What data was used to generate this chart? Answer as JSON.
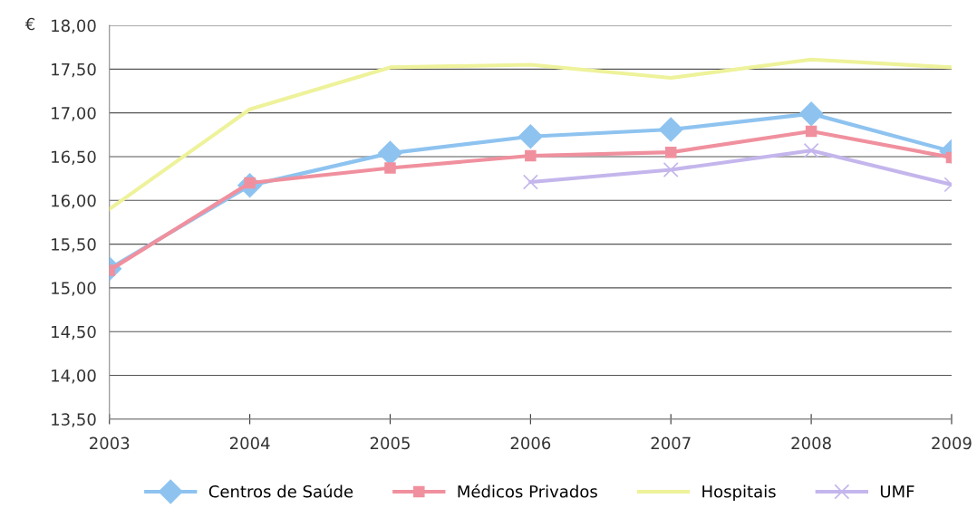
{
  "chart_data": {
    "type": "line",
    "ylabel": "€",
    "categories": [
      "2003",
      "2004",
      "2005",
      "2006",
      "2007",
      "2008",
      "2009"
    ],
    "series": [
      {
        "name": "Centros de Saúde",
        "color": "#8ec3f0",
        "marker": "diamond",
        "values": [
          15.22,
          16.17,
          16.54,
          16.73,
          16.81,
          16.99,
          16.56
        ]
      },
      {
        "name": "Médicos Privados",
        "color": "#f0909e",
        "marker": "square",
        "values": [
          15.2,
          16.2,
          16.37,
          16.51,
          16.55,
          16.79,
          16.49
        ]
      },
      {
        "name": "Hospitais",
        "color": "#eef29a",
        "marker": "none",
        "values": [
          15.9,
          17.04,
          17.52,
          17.55,
          17.4,
          17.61,
          17.52
        ]
      },
      {
        "name": "UMF",
        "color": "#c4b6ec",
        "marker": "cross",
        "values": [
          null,
          null,
          null,
          16.21,
          16.35,
          16.57,
          16.18
        ]
      }
    ],
    "ylim": [
      13.5,
      18
    ],
    "yticks": [
      {
        "value": 13.5,
        "label": "13,50"
      },
      {
        "value": 14,
        "label": "14,00"
      },
      {
        "value": 14.5,
        "label": "14,50"
      },
      {
        "value": 15,
        "label": "15,00"
      },
      {
        "value": 15.5,
        "label": "15,50"
      },
      {
        "value": 16,
        "label": "16,00"
      },
      {
        "value": 16.5,
        "label": "16,50"
      },
      {
        "value": 17,
        "label": "17,00"
      },
      {
        "value": 17.5,
        "label": "17,50"
      },
      {
        "value": 18,
        "label": "18,00"
      }
    ],
    "grid": "y",
    "legend": "bottom",
    "line_style": "solid"
  }
}
